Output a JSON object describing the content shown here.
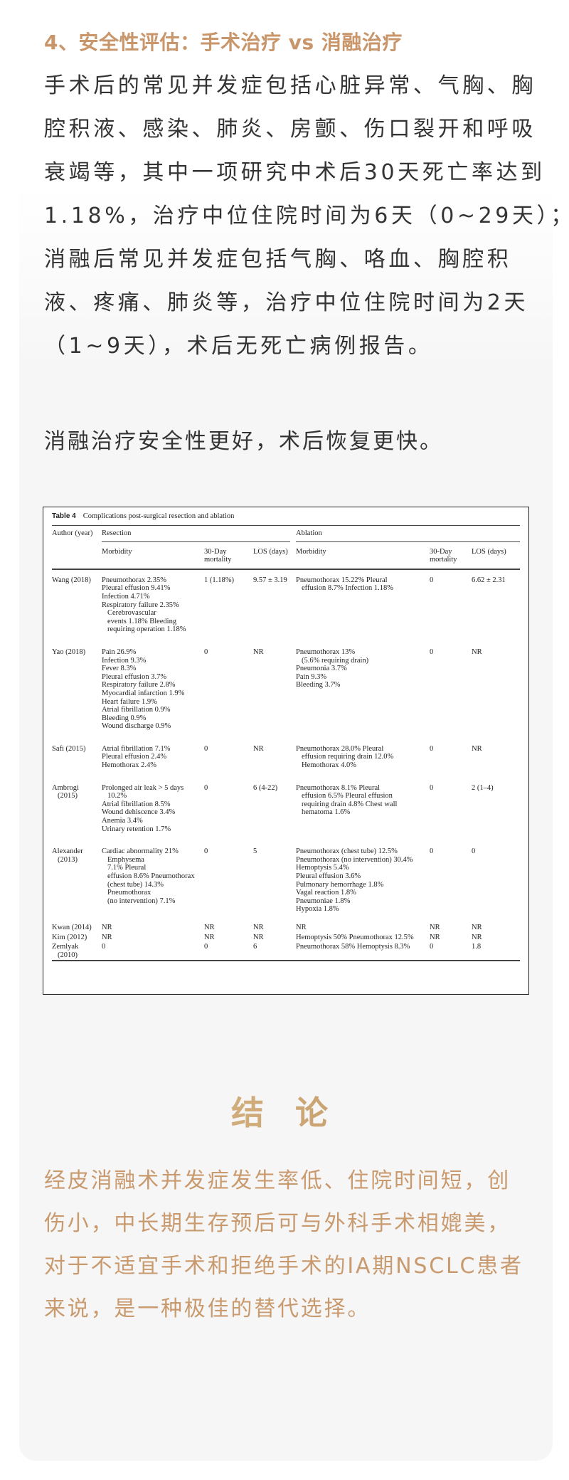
{
  "section": {
    "heading": "4、安全性评估：手术治疗 vs 消融治疗",
    "body_lines": [
      "手术后的常见并发症包括心脏异常、气胸、胸",
      "腔积液、感染、肺炎、房颤、伤口裂开和呼吸",
      "衰竭等，其中一项研究中术后30天死亡率达到",
      "1.18%，治疗中位住院时间为6天（0~29天）；",
      "消融后常见并发症包括气胸、咯血、胸腔积",
      "液、疼痛、肺炎等，治疗中位住院时间为2天",
      "（1~9天），术后无死亡病例报告。"
    ],
    "summary": "消融治疗安全性更好，术后恢复更快。"
  },
  "table": {
    "label": "Table 4",
    "caption": "Complications post-surgical resection and ablation",
    "headers": {
      "author": "Author (year)",
      "resection": "Resection",
      "ablation": "Ablation",
      "morbidity": "Morbidity",
      "mortality": [
        "30-Day",
        "mortality"
      ],
      "los": "LOS (days)"
    },
    "rows": [
      {
        "author": [
          "Wang (2018)"
        ],
        "res_morb": [
          {
            "t": "Pneumothorax 2.35%"
          },
          {
            "t": "Pleural effusion 9.41%"
          },
          {
            "t": "Infection 4.71%"
          },
          {
            "t": "Respiratory failure 2.35%"
          },
          {
            "t": "Cerebrovascular",
            "indent": true
          },
          {
            "t": "events 1.18% Bleeding",
            "indent": true
          },
          {
            "t": "requiring operation 1.18%",
            "indent": true
          }
        ],
        "res_mort": "1 (1.18%)",
        "res_los": "9.57 ± 3.19",
        "abl_morb": [
          {
            "t": "Pneumothorax 15.22% Pleural"
          },
          {
            "t": "effusion 8.7% Infection 1.18%",
            "indent": true
          }
        ],
        "abl_mort": "0",
        "abl_los": "6.62 ± 2.31"
      },
      {
        "author": [
          "Yao (2018)"
        ],
        "res_morb": [
          {
            "t": "Pain 26.9%"
          },
          {
            "t": "Infection 9.3%"
          },
          {
            "t": "Fever 8.3%"
          },
          {
            "t": "Pleural effusion 3.7%"
          },
          {
            "t": "Respiratory failure 2.8%"
          },
          {
            "t": "Myocardial infarction 1.9%"
          },
          {
            "t": "Heart failure 1.9%"
          },
          {
            "t": "Atrial fibrillation 0.9%"
          },
          {
            "t": "Bleeding 0.9%"
          },
          {
            "t": "Wound discharge 0.9%"
          }
        ],
        "res_mort": "0",
        "res_los": "NR",
        "abl_morb": [
          {
            "t": "Pneumothorax 13%"
          },
          {
            "t": "(5.6% requiring drain)",
            "indent": true
          },
          {
            "t": "Pneumonia 3.7%"
          },
          {
            "t": "Pain 9.3%"
          },
          {
            "t": "Bleeding 3.7%"
          }
        ],
        "abl_mort": "0",
        "abl_los": "NR"
      },
      {
        "author": [
          "Safi (2015)"
        ],
        "res_morb": [
          {
            "t": "Atrial fibrillation 7.1%"
          },
          {
            "t": "Pleural effusion 2.4%"
          },
          {
            "t": "Hemothorax 2.4%"
          }
        ],
        "res_mort": "0",
        "res_los": "NR",
        "abl_morb": [
          {
            "t": "Pneumothorax 28.0% Pleural"
          },
          {
            "t": "effusion requiring drain 12.0%",
            "indent": true
          },
          {
            "t": "Hemothorax 4.0%",
            "indent": true
          }
        ],
        "abl_mort": "0",
        "abl_los": "NR"
      },
      {
        "author": [
          "Ambrogi",
          "(2015)"
        ],
        "res_morb": [
          {
            "t": "Prolonged air leak > 5 days"
          },
          {
            "t": "10.2%",
            "indent": true
          },
          {
            "t": "Atrial fibrillation 8.5%"
          },
          {
            "t": "Wound dehiscence 3.4%"
          },
          {
            "t": "Anemia 3.4%"
          },
          {
            "t": "Urinary retention 1.7%"
          }
        ],
        "res_mort": "0",
        "res_los": "6 (4-22)",
        "abl_morb": [
          {
            "t": "Pneumothorax 8.1% Pleural"
          },
          {
            "t": "effusion 6.5% Pleural effusion",
            "indent": true
          },
          {
            "t": "requiring drain 4.8% Chest wall",
            "indent": true
          },
          {
            "t": "hematoma 1.6%",
            "indent": true
          }
        ],
        "abl_mort": "0",
        "abl_los": "2 (1–4)"
      },
      {
        "author": [
          "Alexander",
          "(2013)"
        ],
        "res_morb": [
          {
            "t": "Cardiac abnormality 21%"
          },
          {
            "t": "Emphysema",
            "indent": true
          },
          {
            "t": "7.1% Pleural",
            "indent": true
          },
          {
            "t": "effusion 8.6% Pneumothorax",
            "indent": true
          },
          {
            "t": "(chest tube) 14.3%",
            "indent": true
          },
          {
            "t": "Pneumothorax",
            "indent": true
          },
          {
            "t": "(no intervention) 7.1%",
            "indent": true
          }
        ],
        "res_mort": "0",
        "res_los": "5",
        "abl_morb": [
          {
            "t": "Pneumothorax (chest tube) 12.5%"
          },
          {
            "t": "Pneumothorax (no intervention) 30.4%"
          },
          {
            "t": "Hemoptysis 5.4%"
          },
          {
            "t": "Pleural effusion 3.6%"
          },
          {
            "t": "Pulmonary hemorrhage 1.8%"
          },
          {
            "t": "Vagal reaction 1.8%"
          },
          {
            "t": "Pneumoniae 1.8%"
          },
          {
            "t": "Hypoxia 1.8%"
          }
        ],
        "abl_mort": "0",
        "abl_los": "0"
      },
      {
        "author": [
          "Kwan (2014)"
        ],
        "res_morb": [
          {
            "t": "NR"
          }
        ],
        "res_mort": "NR",
        "res_los": "NR",
        "abl_morb": [
          {
            "t": "NR"
          }
        ],
        "abl_mort": "NR",
        "abl_los": "NR"
      },
      {
        "author": [
          "Kim (2012)"
        ],
        "res_morb": [
          {
            "t": "NR"
          }
        ],
        "res_mort": "NR",
        "res_los": "NR",
        "abl_morb": [
          {
            "t": "Hemoptysis 50% Pneumothorax 12.5%"
          }
        ],
        "abl_mort": "NR",
        "abl_los": "NR"
      },
      {
        "author": [
          "Zemlyak",
          "(2010)"
        ],
        "res_morb": [
          {
            "t": "0"
          }
        ],
        "res_mort": "0",
        "res_los": "6",
        "abl_morb": [
          {
            "t": "Pneumothorax 58% Hemoptysis 8.3%"
          }
        ],
        "abl_mort": "0",
        "abl_los": "1.8"
      }
    ]
  },
  "conclusion": {
    "title": "结 论",
    "lines": [
      "经皮消融术并发症发生率低、住院时间短，创",
      "伤小，中长期生存预后可与外科手术相媲美，",
      "对于不适宜手术和拒绝手术的IA期NSCLC患者",
      "来说，是一种极佳的替代选择。"
    ]
  },
  "colors": {
    "accent": "#c8966a",
    "body_text": "#333333",
    "conclusion_text": "#c99a6e",
    "card_bg": "#f6f6f6"
  }
}
